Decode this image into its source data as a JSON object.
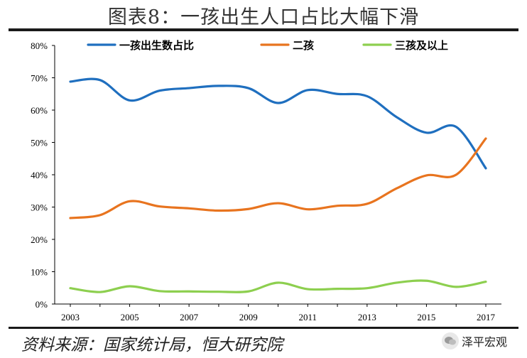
{
  "header": {
    "title": "图表8：一孩出生人口占比大幅下滑"
  },
  "footer": {
    "source": "资料来源：国家统计局，恒大研究院",
    "brand": "泽平宏观"
  },
  "chart_data": {
    "type": "line",
    "title": "图表8：一孩出生人口占比大幅下滑",
    "x": [
      2003,
      2004,
      2005,
      2006,
      2007,
      2008,
      2009,
      2010,
      2011,
      2012,
      2013,
      2014,
      2015,
      2016,
      2017
    ],
    "x_tick_labels": [
      "2003",
      "2005",
      "2007",
      "2009",
      "2011",
      "2013",
      "2015",
      "2017"
    ],
    "y_tick_labels": [
      "0%",
      "10%",
      "20%",
      "30%",
      "40%",
      "50%",
      "60%",
      "70%",
      "80%"
    ],
    "ylim": [
      0,
      80
    ],
    "xlabel": "",
    "ylabel": "",
    "series": [
      {
        "name": "一孩出生数占比",
        "color": "#1f6fbf",
        "values": [
          68.8,
          69.3,
          63.0,
          66.0,
          66.8,
          67.5,
          66.8,
          62.2,
          66.2,
          65.0,
          64.3,
          57.8,
          53.0,
          54.8,
          42.0
        ]
      },
      {
        "name": "二孩",
        "color": "#e8741f",
        "values": [
          26.6,
          27.5,
          31.8,
          30.2,
          29.6,
          28.9,
          29.4,
          31.2,
          29.3,
          30.4,
          31.0,
          35.8,
          39.8,
          40.0,
          51.2
        ]
      },
      {
        "name": "三孩及以上",
        "color": "#8dcf4f",
        "values": [
          4.9,
          3.7,
          5.5,
          4.0,
          3.9,
          3.8,
          3.9,
          6.6,
          4.6,
          4.7,
          4.9,
          6.6,
          7.2,
          5.3,
          6.9
        ]
      }
    ],
    "legend_position": "top"
  }
}
